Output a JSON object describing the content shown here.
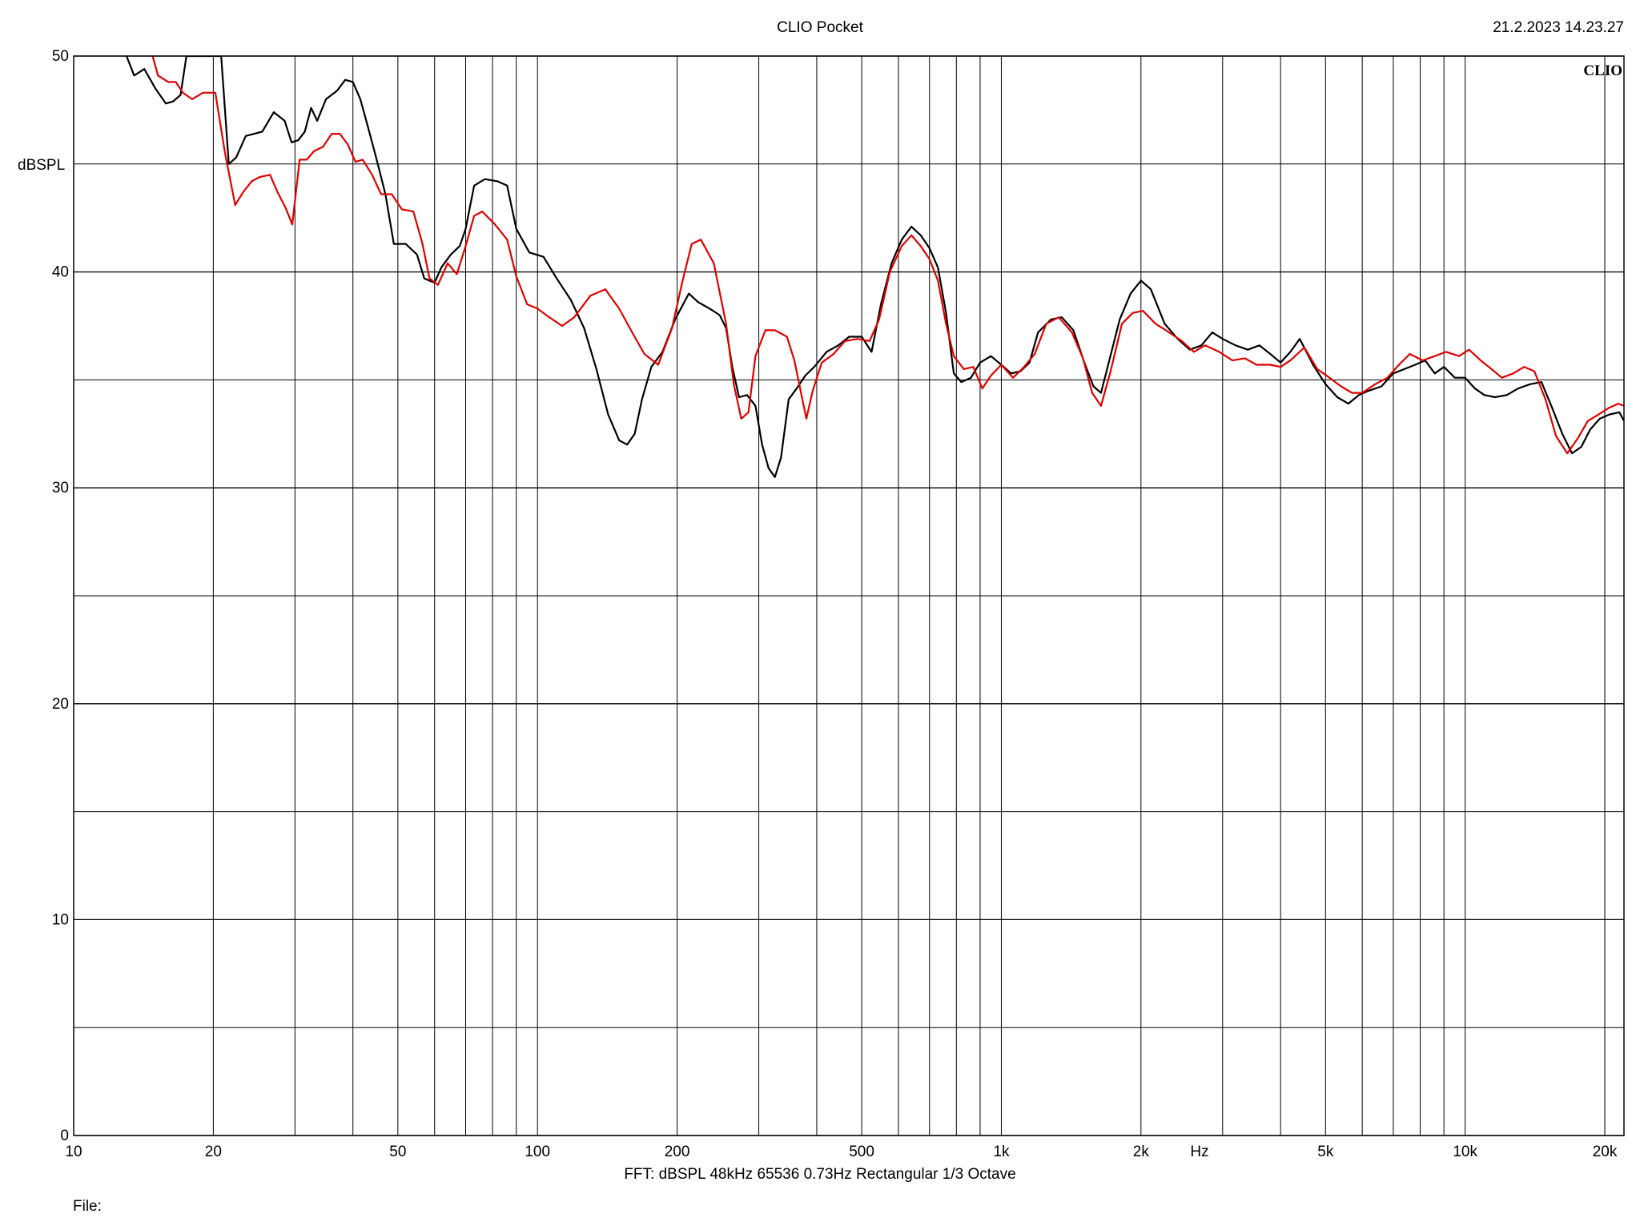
{
  "header": {
    "title": "CLIO Pocket",
    "timestamp": "21.2.2023 14.23.27"
  },
  "brand_label": "CLIO",
  "footer": {
    "settings": "FFT:  dBSPL  48kHz   65536  0.73Hz  Rectangular  1/3 Octave",
    "file_label": "File:"
  },
  "chart_data": {
    "type": "line",
    "title": "CLIO Pocket",
    "xlabel": "Hz",
    "ylabel": "dBSPL",
    "xscale": "log",
    "xlim": [
      10,
      22000
    ],
    "ylim": [
      0,
      50
    ],
    "grid": true,
    "x_ticks": [
      {
        "value": 10,
        "label": "10"
      },
      {
        "value": 20,
        "label": "20"
      },
      {
        "value": 50,
        "label": "50"
      },
      {
        "value": 100,
        "label": "100"
      },
      {
        "value": 200,
        "label": "200"
      },
      {
        "value": 500,
        "label": "500"
      },
      {
        "value": 1000,
        "label": "1k"
      },
      {
        "value": 2000,
        "label": "2k"
      },
      {
        "value": 5000,
        "label": "5k"
      },
      {
        "value": 10000,
        "label": "10k"
      },
      {
        "value": 20000,
        "label": "20k"
      }
    ],
    "y_ticks": [
      {
        "value": 0,
        "label": "0"
      },
      {
        "value": 10,
        "label": "10"
      },
      {
        "value": 20,
        "label": "20"
      },
      {
        "value": 30,
        "label": "30"
      },
      {
        "value": 40,
        "label": "40"
      },
      {
        "value": 50,
        "label": "50"
      }
    ],
    "series": [
      {
        "color": "#000000",
        "points": [
          [
            13,
            50
          ],
          [
            13.5,
            49.1
          ],
          [
            14.2,
            49.4
          ],
          [
            15,
            48.5
          ],
          [
            15.8,
            47.8
          ],
          [
            16.4,
            47.9
          ],
          [
            17,
            48.2
          ],
          [
            17.5,
            50
          ],
          [
            20,
            50
          ],
          [
            20.8,
            50
          ],
          [
            21.6,
            45
          ],
          [
            22.4,
            45.3
          ],
          [
            23.5,
            46.3
          ],
          [
            24.5,
            46.4
          ],
          [
            25.5,
            46.5
          ],
          [
            27,
            47.4
          ],
          [
            28.5,
            47
          ],
          [
            29.5,
            46
          ],
          [
            30.5,
            46.1
          ],
          [
            31.5,
            46.5
          ],
          [
            32.5,
            47.6
          ],
          [
            33.5,
            47
          ],
          [
            35,
            48
          ],
          [
            37,
            48.4
          ],
          [
            38.5,
            48.9
          ],
          [
            40,
            48.8
          ],
          [
            41.5,
            48
          ],
          [
            43,
            46.8
          ],
          [
            45,
            45.2
          ],
          [
            47,
            43.6
          ],
          [
            49,
            41.3
          ],
          [
            52,
            41.3
          ],
          [
            55,
            40.8
          ],
          [
            57,
            39.7
          ],
          [
            60,
            39.5
          ],
          [
            62,
            40.2
          ],
          [
            65,
            40.8
          ],
          [
            68,
            41.2
          ],
          [
            70,
            42
          ],
          [
            73,
            44
          ],
          [
            77,
            44.3
          ],
          [
            82,
            44.2
          ],
          [
            86,
            44
          ],
          [
            90,
            42
          ],
          [
            96,
            40.9
          ],
          [
            103,
            40.7
          ],
          [
            110,
            39.7
          ],
          [
            118,
            38.7
          ],
          [
            126,
            37.4
          ],
          [
            134,
            35.5
          ],
          [
            142,
            33.4
          ],
          [
            150,
            32.2
          ],
          [
            156,
            32
          ],
          [
            162,
            32.5
          ],
          [
            168,
            34.1
          ],
          [
            176,
            35.6
          ],
          [
            186,
            36.3
          ],
          [
            198,
            37.8
          ],
          [
            212,
            39
          ],
          [
            222,
            38.6
          ],
          [
            235,
            38.3
          ],
          [
            247,
            38
          ],
          [
            255,
            37.4
          ],
          [
            263,
            35.6
          ],
          [
            272,
            34.2
          ],
          [
            283,
            34.3
          ],
          [
            295,
            33.8
          ],
          [
            305,
            32
          ],
          [
            315,
            30.9
          ],
          [
            325,
            30.5
          ],
          [
            335,
            31.4
          ],
          [
            348,
            34.1
          ],
          [
            362,
            34.6
          ],
          [
            378,
            35.2
          ],
          [
            395,
            35.6
          ],
          [
            420,
            36.3
          ],
          [
            445,
            36.6
          ],
          [
            470,
            37
          ],
          [
            500,
            37
          ],
          [
            525,
            36.3
          ],
          [
            550,
            38.5
          ],
          [
            580,
            40.4
          ],
          [
            610,
            41.5
          ],
          [
            640,
            42.1
          ],
          [
            670,
            41.7
          ],
          [
            700,
            41.1
          ],
          [
            730,
            40.2
          ],
          [
            760,
            38.1
          ],
          [
            790,
            35.3
          ],
          [
            820,
            34.9
          ],
          [
            860,
            35.1
          ],
          [
            900,
            35.8
          ],
          [
            950,
            36.1
          ],
          [
            1000,
            35.7
          ],
          [
            1050,
            35.3
          ],
          [
            1100,
            35.4
          ],
          [
            1150,
            35.8
          ],
          [
            1200,
            37.2
          ],
          [
            1280,
            37.8
          ],
          [
            1350,
            37.9
          ],
          [
            1430,
            37.3
          ],
          [
            1510,
            35.8
          ],
          [
            1580,
            34.7
          ],
          [
            1640,
            34.4
          ],
          [
            1700,
            35.7
          ],
          [
            1800,
            37.8
          ],
          [
            1900,
            39
          ],
          [
            2000,
            39.6
          ],
          [
            2100,
            39.2
          ],
          [
            2250,
            37.6
          ],
          [
            2400,
            36.9
          ],
          [
            2550,
            36.4
          ],
          [
            2700,
            36.6
          ],
          [
            2850,
            37.2
          ],
          [
            3000,
            36.9
          ],
          [
            3200,
            36.6
          ],
          [
            3400,
            36.4
          ],
          [
            3600,
            36.6
          ],
          [
            3800,
            36.2
          ],
          [
            4000,
            35.8
          ],
          [
            4200,
            36.3
          ],
          [
            4400,
            36.9
          ],
          [
            4700,
            35.7
          ],
          [
            5000,
            34.8
          ],
          [
            5300,
            34.2
          ],
          [
            5600,
            33.9
          ],
          [
            5900,
            34.3
          ],
          [
            6200,
            34.5
          ],
          [
            6600,
            34.7
          ],
          [
            7000,
            35.3
          ],
          [
            7400,
            35.5
          ],
          [
            7800,
            35.7
          ],
          [
            8200,
            35.9
          ],
          [
            8600,
            35.3
          ],
          [
            9000,
            35.6
          ],
          [
            9500,
            35.1
          ],
          [
            10000,
            35.1
          ],
          [
            10500,
            34.6
          ],
          [
            11000,
            34.3
          ],
          [
            11600,
            34.2
          ],
          [
            12300,
            34.3
          ],
          [
            13000,
            34.6
          ],
          [
            13800,
            34.8
          ],
          [
            14600,
            34.9
          ],
          [
            15400,
            33.7
          ],
          [
            16200,
            32.5
          ],
          [
            17000,
            31.6
          ],
          [
            17800,
            31.9
          ],
          [
            18600,
            32.7
          ],
          [
            19500,
            33.2
          ],
          [
            20500,
            33.4
          ],
          [
            21500,
            33.5
          ],
          [
            22000,
            33.1
          ]
        ]
      },
      {
        "color": "#e00000",
        "points": [
          [
            14.8,
            50
          ],
          [
            15.2,
            49.1
          ],
          [
            16,
            48.8
          ],
          [
            16.6,
            48.8
          ],
          [
            17.2,
            48.3
          ],
          [
            18,
            48
          ],
          [
            19,
            48.3
          ],
          [
            20.2,
            48.3
          ],
          [
            21.2,
            45.5
          ],
          [
            22.3,
            43.1
          ],
          [
            23.2,
            43.7
          ],
          [
            24.2,
            44.2
          ],
          [
            25.2,
            44.4
          ],
          [
            26.5,
            44.5
          ],
          [
            27.5,
            43.7
          ],
          [
            28.6,
            43
          ],
          [
            29.6,
            42.2
          ],
          [
            30.7,
            45.2
          ],
          [
            31.8,
            45.2
          ],
          [
            33,
            45.6
          ],
          [
            34.5,
            45.8
          ],
          [
            36,
            46.4
          ],
          [
            37.5,
            46.4
          ],
          [
            39,
            45.9
          ],
          [
            40.5,
            45.1
          ],
          [
            42,
            45.2
          ],
          [
            44,
            44.5
          ],
          [
            46,
            43.6
          ],
          [
            48.5,
            43.6
          ],
          [
            51,
            42.9
          ],
          [
            54,
            42.8
          ],
          [
            56.5,
            41.3
          ],
          [
            58.5,
            39.7
          ],
          [
            61,
            39.4
          ],
          [
            64,
            40.4
          ],
          [
            67,
            39.9
          ],
          [
            70,
            41.2
          ],
          [
            73,
            42.6
          ],
          [
            76,
            42.8
          ],
          [
            81,
            42.2
          ],
          [
            86,
            41.5
          ],
          [
            90,
            39.8
          ],
          [
            95,
            38.5
          ],
          [
            100,
            38.3
          ],
          [
            106,
            37.9
          ],
          [
            113,
            37.5
          ],
          [
            120,
            37.9
          ],
          [
            130,
            38.9
          ],
          [
            140,
            39.2
          ],
          [
            150,
            38.3
          ],
          [
            160,
            37.2
          ],
          [
            170,
            36.2
          ],
          [
            182,
            35.7
          ],
          [
            195,
            37.4
          ],
          [
            205,
            39.5
          ],
          [
            215,
            41.3
          ],
          [
            225,
            41.5
          ],
          [
            240,
            40.4
          ],
          [
            255,
            37.6
          ],
          [
            265,
            34.8
          ],
          [
            275,
            33.2
          ],
          [
            285,
            33.5
          ],
          [
            295,
            36.1
          ],
          [
            310,
            37.3
          ],
          [
            325,
            37.3
          ],
          [
            345,
            37
          ],
          [
            358,
            35.9
          ],
          [
            370,
            34.4
          ],
          [
            380,
            33.2
          ],
          [
            392,
            34.5
          ],
          [
            410,
            35.8
          ],
          [
            435,
            36.2
          ],
          [
            460,
            36.8
          ],
          [
            490,
            36.9
          ],
          [
            520,
            36.8
          ],
          [
            545,
            37.8
          ],
          [
            575,
            40
          ],
          [
            610,
            41.2
          ],
          [
            640,
            41.7
          ],
          [
            670,
            41.2
          ],
          [
            700,
            40.6
          ],
          [
            730,
            39.6
          ],
          [
            760,
            37.6
          ],
          [
            790,
            36.1
          ],
          [
            830,
            35.5
          ],
          [
            870,
            35.6
          ],
          [
            910,
            34.6
          ],
          [
            950,
            35.2
          ],
          [
            1000,
            35.7
          ],
          [
            1060,
            35.1
          ],
          [
            1120,
            35.6
          ],
          [
            1180,
            36.2
          ],
          [
            1250,
            37.6
          ],
          [
            1330,
            37.9
          ],
          [
            1420,
            37.2
          ],
          [
            1500,
            36
          ],
          [
            1570,
            34.4
          ],
          [
            1640,
            33.8
          ],
          [
            1720,
            35.4
          ],
          [
            1820,
            37.6
          ],
          [
            1920,
            38.1
          ],
          [
            2020,
            38.2
          ],
          [
            2150,
            37.6
          ],
          [
            2300,
            37.2
          ],
          [
            2450,
            36.8
          ],
          [
            2600,
            36.3
          ],
          [
            2750,
            36.6
          ],
          [
            2950,
            36.3
          ],
          [
            3150,
            35.9
          ],
          [
            3350,
            36
          ],
          [
            3550,
            35.7
          ],
          [
            3800,
            35.7
          ],
          [
            4000,
            35.6
          ],
          [
            4200,
            35.9
          ],
          [
            4500,
            36.5
          ],
          [
            4800,
            35.5
          ],
          [
            5100,
            35.1
          ],
          [
            5400,
            34.7
          ],
          [
            5700,
            34.4
          ],
          [
            6000,
            34.4
          ],
          [
            6400,
            34.8
          ],
          [
            6800,
            35.1
          ],
          [
            7200,
            35.7
          ],
          [
            7600,
            36.2
          ],
          [
            8100,
            35.9
          ],
          [
            8600,
            36.1
          ],
          [
            9100,
            36.3
          ],
          [
            9700,
            36.1
          ],
          [
            10200,
            36.4
          ],
          [
            10800,
            35.9
          ],
          [
            11400,
            35.5
          ],
          [
            12000,
            35.1
          ],
          [
            12700,
            35.3
          ],
          [
            13400,
            35.6
          ],
          [
            14100,
            35.4
          ],
          [
            14900,
            34.1
          ],
          [
            15700,
            32.4
          ],
          [
            16600,
            31.6
          ],
          [
            17500,
            32.3
          ],
          [
            18400,
            33.1
          ],
          [
            19400,
            33.4
          ],
          [
            20400,
            33.7
          ],
          [
            21400,
            33.9
          ],
          [
            22000,
            33.8
          ]
        ]
      }
    ]
  }
}
